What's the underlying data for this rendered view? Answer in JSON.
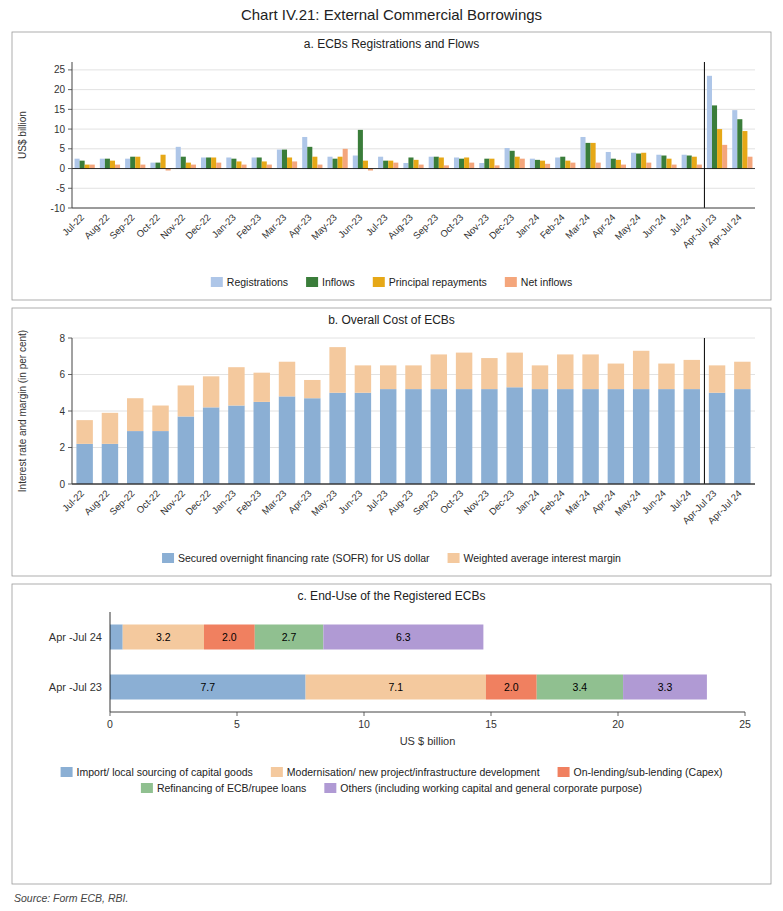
{
  "title": "Chart IV.21: External Commercial Borrowings",
  "annotations": [
    "Source: Form ECB, RBI."
  ],
  "chart_data": [
    {
      "type": "bar",
      "title": "a. ECBs Registrations and Flows",
      "ylabel": "US$ billion",
      "ylim": [
        -10,
        27
      ],
      "yticks": [
        -10,
        -5,
        0,
        5,
        10,
        15,
        20,
        25
      ],
      "grid": true,
      "legend": "bottom",
      "categories": [
        "Jul-22",
        "Aug-22",
        "Sep-22",
        "Oct-22",
        "Nov-22",
        "Dec-22",
        "Jan-23",
        "Feb-23",
        "Mar-23",
        "Apr-23",
        "May-23",
        "Jun-23",
        "Jul-23",
        "Aug-23",
        "Sep-23",
        "Oct-23",
        "Nov-23",
        "Dec-23",
        "Jan-24",
        "Feb-24",
        "Mar-24",
        "Apr-24",
        "May-24",
        "Jun-24",
        "Jul-24",
        "Apr-Jul 23",
        "Apr-Jul 24"
      ],
      "series": [
        {
          "name": "Registrations",
          "color": "#aec6e8",
          "values": [
            2.5,
            2.5,
            2.5,
            1.5,
            5.5,
            2.8,
            2.8,
            2.8,
            4.8,
            8.0,
            3.0,
            3.3,
            3.0,
            1.4,
            3.0,
            2.8,
            1.4,
            5.2,
            2.5,
            2.8,
            8.0,
            4.2,
            4.0,
            3.5,
            3.5,
            23.5,
            14.8
          ]
        },
        {
          "name": "Inflows",
          "color": "#3a7d3a",
          "values": [
            2.0,
            2.5,
            3.0,
            1.5,
            3.0,
            2.8,
            2.5,
            2.8,
            4.8,
            5.5,
            2.5,
            9.8,
            2.0,
            2.8,
            3.0,
            2.5,
            2.5,
            4.5,
            2.2,
            3.0,
            6.5,
            2.5,
            3.8,
            3.3,
            3.3,
            16.0,
            12.5
          ]
        },
        {
          "name": "Principal repayments",
          "color": "#e6a817",
          "values": [
            1.0,
            2.0,
            3.0,
            3.5,
            1.5,
            2.8,
            1.8,
            1.8,
            2.8,
            3.0,
            3.0,
            2.0,
            2.0,
            2.2,
            2.8,
            2.8,
            2.5,
            3.0,
            2.0,
            2.0,
            6.5,
            2.2,
            4.0,
            2.5,
            3.0,
            10.0,
            9.5
          ]
        },
        {
          "name": "Net inflows",
          "color": "#f4a67c",
          "values": [
            1.0,
            1.0,
            1.0,
            -0.5,
            1.0,
            1.5,
            1.0,
            1.0,
            1.8,
            1.0,
            5.0,
            -0.5,
            1.5,
            1.0,
            0.8,
            1.5,
            0.8,
            2.5,
            1.2,
            1.5,
            1.5,
            1.0,
            1.5,
            1.0,
            1.0,
            6.0,
            3.0
          ]
        }
      ]
    },
    {
      "type": "bar",
      "title": "b. Overall Cost of ECBs",
      "ylabel": "Interest rate and margin (in per cent)",
      "ylim": [
        0,
        8
      ],
      "yticks": [
        0,
        2,
        4,
        6,
        8
      ],
      "grid": true,
      "stacked": true,
      "legend": "bottom",
      "categories": [
        "Jul-22",
        "Aug-22",
        "Sep-22",
        "Oct-22",
        "Nov-22",
        "Dec-22",
        "Jan-23",
        "Feb-23",
        "Mar-23",
        "Apr-23",
        "May-23",
        "Jun-23",
        "Jul-23",
        "Aug-23",
        "Sep-23",
        "Oct-23",
        "Nov-23",
        "Dec-23",
        "Jan-24",
        "Feb-24",
        "Mar-24",
        "Apr-24",
        "May-24",
        "Jun-24",
        "Jul-24",
        "Apr-Jul 23",
        "Apr-Jul 24"
      ],
      "series": [
        {
          "name": "Secured overnight financing rate (SOFR) for US dollar",
          "color": "#8bafd4",
          "values": [
            2.2,
            2.2,
            2.9,
            2.9,
            3.7,
            4.2,
            4.3,
            4.5,
            4.8,
            4.7,
            5.0,
            5.0,
            5.2,
            5.2,
            5.2,
            5.2,
            5.2,
            5.3,
            5.2,
            5.2,
            5.2,
            5.2,
            5.2,
            5.2,
            5.2,
            5.0,
            5.2
          ]
        },
        {
          "name": "Weighted average interest margin",
          "color": "#f4c99e",
          "values": [
            1.3,
            1.7,
            1.8,
            1.4,
            1.7,
            1.7,
            2.1,
            1.6,
            1.9,
            1.0,
            2.5,
            1.5,
            1.3,
            1.3,
            1.9,
            2.0,
            1.7,
            1.9,
            1.3,
            1.9,
            1.9,
            1.4,
            2.1,
            1.4,
            1.6,
            1.5,
            1.5
          ]
        }
      ]
    },
    {
      "type": "bar",
      "title": "c. End-Use of the Registered ECBs",
      "xlabel": "US $ billion",
      "orientation": "horizontal",
      "stacked": true,
      "grid": false,
      "legend": "bottom",
      "data_labels": true,
      "xlim": [
        0,
        25
      ],
      "xticks": [
        0,
        5,
        10,
        15,
        20,
        25
      ],
      "categories": [
        "Apr -Jul 24",
        "Apr -Jul 23"
      ],
      "series": [
        {
          "name": "Import/ local sourcing of capital goods",
          "color": "#8bafd4",
          "values": [
            0.5,
            7.7
          ],
          "value_labels": [
            null,
            "7.7"
          ]
        },
        {
          "name": "Modernisation/ new project/infrastructure development",
          "color": "#f4c99e",
          "values": [
            3.2,
            7.1
          ],
          "value_labels": [
            "3.2",
            "7.1"
          ]
        },
        {
          "name": "On-lending/sub-lending (Capex)",
          "color": "#f08060",
          "values": [
            2.0,
            2.0
          ],
          "value_labels": [
            "2.0",
            "2.0"
          ]
        },
        {
          "name": "Refinancing of ECB/rupee loans",
          "color": "#90c090",
          "values": [
            2.7,
            3.4
          ],
          "value_labels": [
            "2.7",
            "3.4"
          ]
        },
        {
          "name": "Others (including working capital and general corporate purpose)",
          "color": "#b09ad4",
          "values": [
            6.3,
            3.3
          ],
          "value_labels": [
            "6.3",
            "3.3"
          ]
        }
      ]
    }
  ]
}
